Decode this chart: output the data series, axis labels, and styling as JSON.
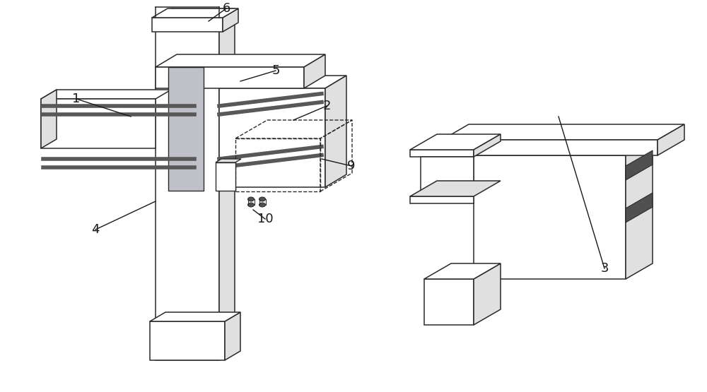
{
  "bg_color": "#ffffff",
  "line_color": "#2a2a2a",
  "gray_fill": "#c0c0c8",
  "light_gray": "#e0e0e0",
  "medium_gray": "#a8a8a8",
  "dark_rod": "#585858",
  "figsize": [
    10.0,
    5.55
  ],
  "dpi": 100,
  "ann_color": "#1a1a1a",
  "ann_lw": 1.0,
  "ann_fs": 13
}
